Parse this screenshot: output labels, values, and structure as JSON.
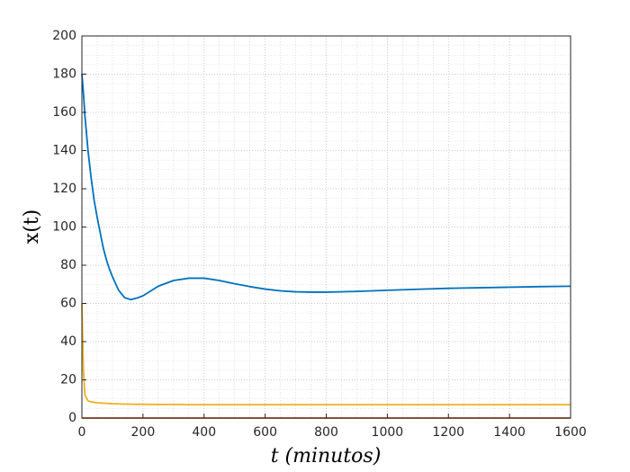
{
  "chart_data": {
    "type": "line",
    "xlabel": "t (minutos)",
    "ylabel": "x(t)",
    "x": [
      0,
      5,
      10,
      20,
      30,
      40,
      50,
      60,
      70,
      80,
      90,
      100,
      120,
      140,
      160,
      180,
      200,
      250,
      300,
      350,
      400,
      450,
      500,
      550,
      600,
      650,
      700,
      750,
      800,
      900,
      1000,
      1100,
      1200,
      1300,
      1400,
      1500,
      1600
    ],
    "series": [
      {
        "color": "#0072bd",
        "values": [
          180,
          170,
          158,
          140,
          126,
          114,
          105,
          97,
          89,
          83,
          78,
          74,
          67,
          63,
          62,
          62.8,
          64,
          69,
          72,
          73.2,
          73.2,
          72,
          70.3,
          68.8,
          67.5,
          66.6,
          66.1,
          65.9,
          65.9,
          66.3,
          66.9,
          67.4,
          67.9,
          68.2,
          68.5,
          68.8,
          69
        ]
      },
      {
        "color": "#d95319",
        "values": [
          0,
          0,
          0,
          0,
          0,
          0,
          0,
          0,
          0,
          0,
          0,
          0,
          0,
          0,
          0,
          0,
          0,
          0,
          0,
          0,
          0,
          0,
          0,
          0,
          0,
          0,
          0,
          0,
          0,
          0,
          0,
          0,
          0,
          0,
          0,
          0,
          0
        ]
      },
      {
        "color": "#edb120",
        "values": [
          60,
          25,
          12,
          9,
          8.5,
          8.2,
          8,
          7.9,
          7.8,
          7.7,
          7.6,
          7.5,
          7.4,
          7.3,
          7.3,
          7.2,
          7.2,
          7.1,
          7.1,
          7,
          7,
          7,
          7,
          7,
          7,
          7,
          7,
          7,
          7,
          7,
          7,
          7,
          7,
          7,
          7,
          7,
          7
        ]
      }
    ],
    "xlim": [
      0,
      1600
    ],
    "xticks": [
      0,
      200,
      400,
      600,
      800,
      1000,
      1200,
      1400,
      1600
    ],
    "ylim": [
      0,
      200
    ],
    "yticks": [
      0,
      20,
      40,
      60,
      80,
      100,
      120,
      140,
      160,
      180,
      200
    ],
    "grid": true,
    "minor_grid": true
  }
}
